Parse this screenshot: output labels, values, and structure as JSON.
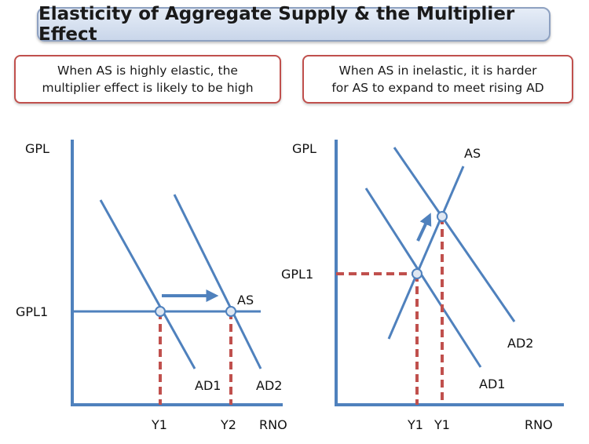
{
  "title": "Elasticity of Aggregate Supply & the Multiplier Effect",
  "notes": {
    "left": {
      "line1": "When AS is highly elastic, the",
      "line2": "multiplier effect is likely to be high"
    },
    "right": {
      "line1": "When AS in inelastic, it is harder",
      "line2": "for AS to expand to meet rising AD"
    }
  },
  "colors": {
    "curve": "#4f81bd",
    "dashed": "#c0504d",
    "title_border": "#8ea1c1",
    "note_border": "#c0504d"
  },
  "left_diagram": {
    "y_axis_label": "GPL",
    "x_axis_label": "RNO",
    "price_label": "GPL1",
    "as_label": "AS",
    "ad1_label": "AD1",
    "ad2_label": "AD2",
    "y1_label": "Y1",
    "y2_label": "Y2",
    "as_shape": "horizontal (perfectly elastic)",
    "shift_arrow": "right"
  },
  "right_diagram": {
    "y_axis_label": "GPL",
    "x_axis_label": "RNO",
    "price_label": "GPL1",
    "as_label": "AS",
    "ad1_label": "AD1",
    "ad2_label": "AD2",
    "y1_label": "Y1",
    "y2_label": "Y1",
    "as_shape": "steep upward (inelastic)",
    "shift_arrow": "up-right"
  }
}
